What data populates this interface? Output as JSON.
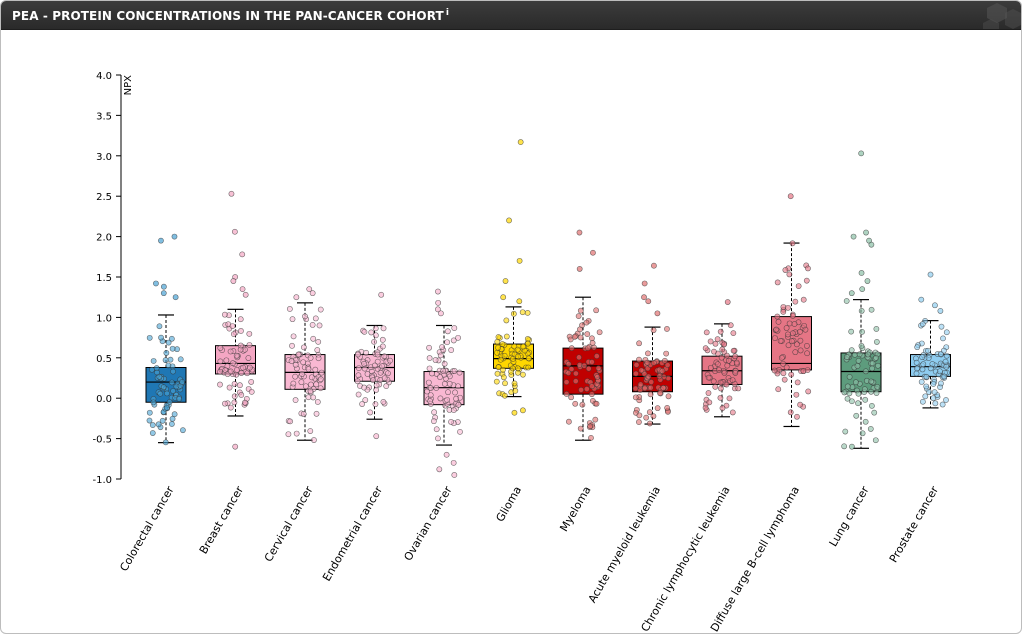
{
  "header": {
    "title": "PEA - PROTEIN CONCENTRATIONS IN THE PAN-CANCER COHORT",
    "info": "i"
  },
  "chart_data": {
    "type": "box",
    "ylabel": "NPX",
    "ylim": [
      -1.0,
      4.0
    ],
    "yticks": [
      "-1.0",
      "-0.5",
      "0.0",
      "0.5",
      "1.0",
      "1.5",
      "2.0",
      "2.5",
      "3.0",
      "3.5",
      "4.0"
    ],
    "categories": [
      "Colorectal cancer",
      "Breast cancer",
      "Cervical cancer",
      "Endometrial cancer",
      "Ovarian cancer",
      "Glioma",
      "Myeloma",
      "Acute myeloid leukemia",
      "Chronic lymphocytic leukemia",
      "Diffuse large B-cell lymphoma",
      "Lung cancer",
      "Prostate cancer"
    ],
    "series": [
      {
        "category": "Colorectal cancer",
        "color": "#1f77b4",
        "point_color": "#4aa3d4",
        "q1": -0.05,
        "median": 0.2,
        "q3": 0.38,
        "whisker_low": -0.55,
        "whisker_high": 1.03,
        "outliers": [
          2.0,
          1.95,
          1.42,
          1.38,
          1.3,
          1.25
        ]
      },
      {
        "category": "Breast cancer",
        "color": "#f4a6c3",
        "point_color": "#f4a6c3",
        "q1": 0.3,
        "median": 0.43,
        "q3": 0.65,
        "whisker_low": -0.22,
        "whisker_high": 1.1,
        "outliers": [
          2.53,
          2.06,
          1.78,
          1.5,
          1.45,
          1.35,
          1.28,
          -0.6
        ]
      },
      {
        "category": "Cervical cancer",
        "color": "#f9b8d2",
        "point_color": "#f9b8d2",
        "q1": 0.11,
        "median": 0.32,
        "q3": 0.54,
        "whisker_low": -0.52,
        "whisker_high": 1.18,
        "outliers": [
          1.35,
          1.3,
          1.25
        ]
      },
      {
        "category": "Endometrial cancer",
        "color": "#f9b8d2",
        "point_color": "#f9b8d2",
        "q1": 0.21,
        "median": 0.38,
        "q3": 0.54,
        "whisker_low": -0.26,
        "whisker_high": 0.9,
        "outliers": [
          1.28,
          -0.47
        ]
      },
      {
        "category": "Ovarian cancer",
        "color": "#f9b8d2",
        "point_color": "#f9b8d2",
        "q1": -0.08,
        "median": 0.13,
        "q3": 0.33,
        "whisker_low": -0.58,
        "whisker_high": 0.9,
        "outliers": [
          1.32,
          1.18,
          1.1,
          1.05,
          -0.7,
          -0.8,
          -0.88,
          -0.95
        ]
      },
      {
        "category": "Glioma",
        "color": "#ffd700",
        "point_color": "#ffd700",
        "q1": 0.37,
        "median": 0.49,
        "q3": 0.67,
        "whisker_low": 0.02,
        "whisker_high": 1.13,
        "outliers": [
          3.17,
          2.2,
          1.7,
          1.45,
          1.25,
          1.2,
          -0.15,
          -0.18
        ]
      },
      {
        "category": "Myeloma",
        "color": "#c00000",
        "point_color": "#e07070",
        "q1": 0.05,
        "median": 0.4,
        "q3": 0.62,
        "whisker_low": -0.52,
        "whisker_high": 1.25,
        "outliers": [
          2.05,
          1.8,
          1.6
        ]
      },
      {
        "category": "Acute myeloid leukemia",
        "color": "#c00000",
        "point_color": "#e07070",
        "q1": 0.08,
        "median": 0.27,
        "q3": 0.46,
        "whisker_low": -0.32,
        "whisker_high": 0.88,
        "outliers": [
          1.64,
          1.42,
          1.25,
          1.2,
          1.05
        ]
      },
      {
        "category": "Chronic lymphocytic leukemia",
        "color": "#e57585",
        "point_color": "#e57585",
        "q1": 0.17,
        "median": 0.34,
        "q3": 0.52,
        "whisker_low": -0.23,
        "whisker_high": 0.92,
        "outliers": [
          1.19
        ]
      },
      {
        "category": "Diffuse large B-cell lymphoma",
        "color": "#e57585",
        "point_color": "#e57585",
        "q1": 0.35,
        "median": 0.43,
        "q3": 1.01,
        "whisker_low": -0.35,
        "whisker_high": 1.92,
        "outliers": [
          2.5
        ]
      },
      {
        "category": "Lung cancer",
        "color": "#5d9c7d",
        "point_color": "#8cc0a6",
        "q1": 0.08,
        "median": 0.33,
        "q3": 0.56,
        "whisker_low": -0.62,
        "whisker_high": 1.22,
        "outliers": [
          3.03,
          2.05,
          2.0,
          1.95,
          1.9,
          1.55,
          1.45,
          1.35,
          1.3,
          -0.6
        ]
      },
      {
        "category": "Prostate cancer",
        "color": "#8fcdf0",
        "point_color": "#8fcdf0",
        "q1": 0.27,
        "median": 0.39,
        "q3": 0.54,
        "whisker_low": -0.12,
        "whisker_high": 0.96,
        "outliers": [
          1.53,
          1.22,
          1.15,
          1.08
        ]
      }
    ]
  }
}
